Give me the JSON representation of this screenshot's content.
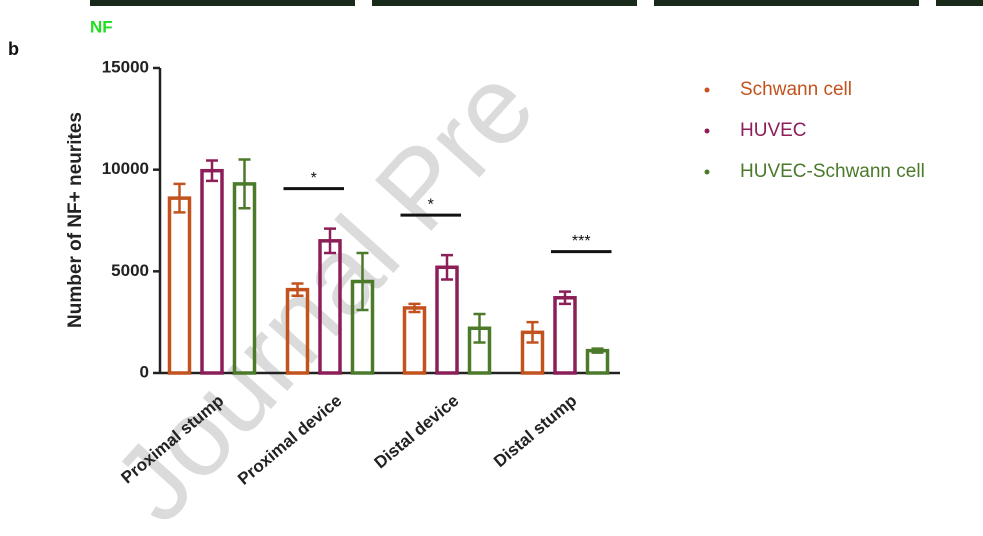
{
  "panel_label": "b",
  "image_label": "NF",
  "watermark": "Journal Pre",
  "chart_data": {
    "type": "bar",
    "ylabel": "Number of NF+ neurites",
    "categories": [
      "Proximal stump",
      "Proximal device",
      "Distal device",
      "Distal stump"
    ],
    "series": [
      {
        "name": "Schwann cell",
        "color": "#c2531f",
        "values": [
          8600,
          4100,
          3200,
          2000
        ],
        "errors": [
          700,
          300,
          200,
          500
        ]
      },
      {
        "name": "HUVEC",
        "color": "#8c1f58",
        "values": [
          9950,
          6500,
          5200,
          3700
        ],
        "errors": [
          500,
          600,
          600,
          300
        ]
      },
      {
        "name": "HUVEC-Schwann cell",
        "color": "#4b7a2b",
        "values": [
          9300,
          4500,
          2200,
          1100
        ],
        "errors": [
          1200,
          1400,
          700,
          100
        ]
      }
    ],
    "ylim": [
      0,
      15000
    ],
    "yticks": [
      0,
      5000,
      10000,
      15000
    ],
    "significance": [
      {
        "label": "*",
        "category": 1,
        "from": 0,
        "to": 1
      },
      {
        "label": "*",
        "category": 2,
        "from": 0,
        "to": 1
      },
      {
        "label": "***",
        "category": 3,
        "from": 1,
        "to": 2
      }
    ]
  }
}
